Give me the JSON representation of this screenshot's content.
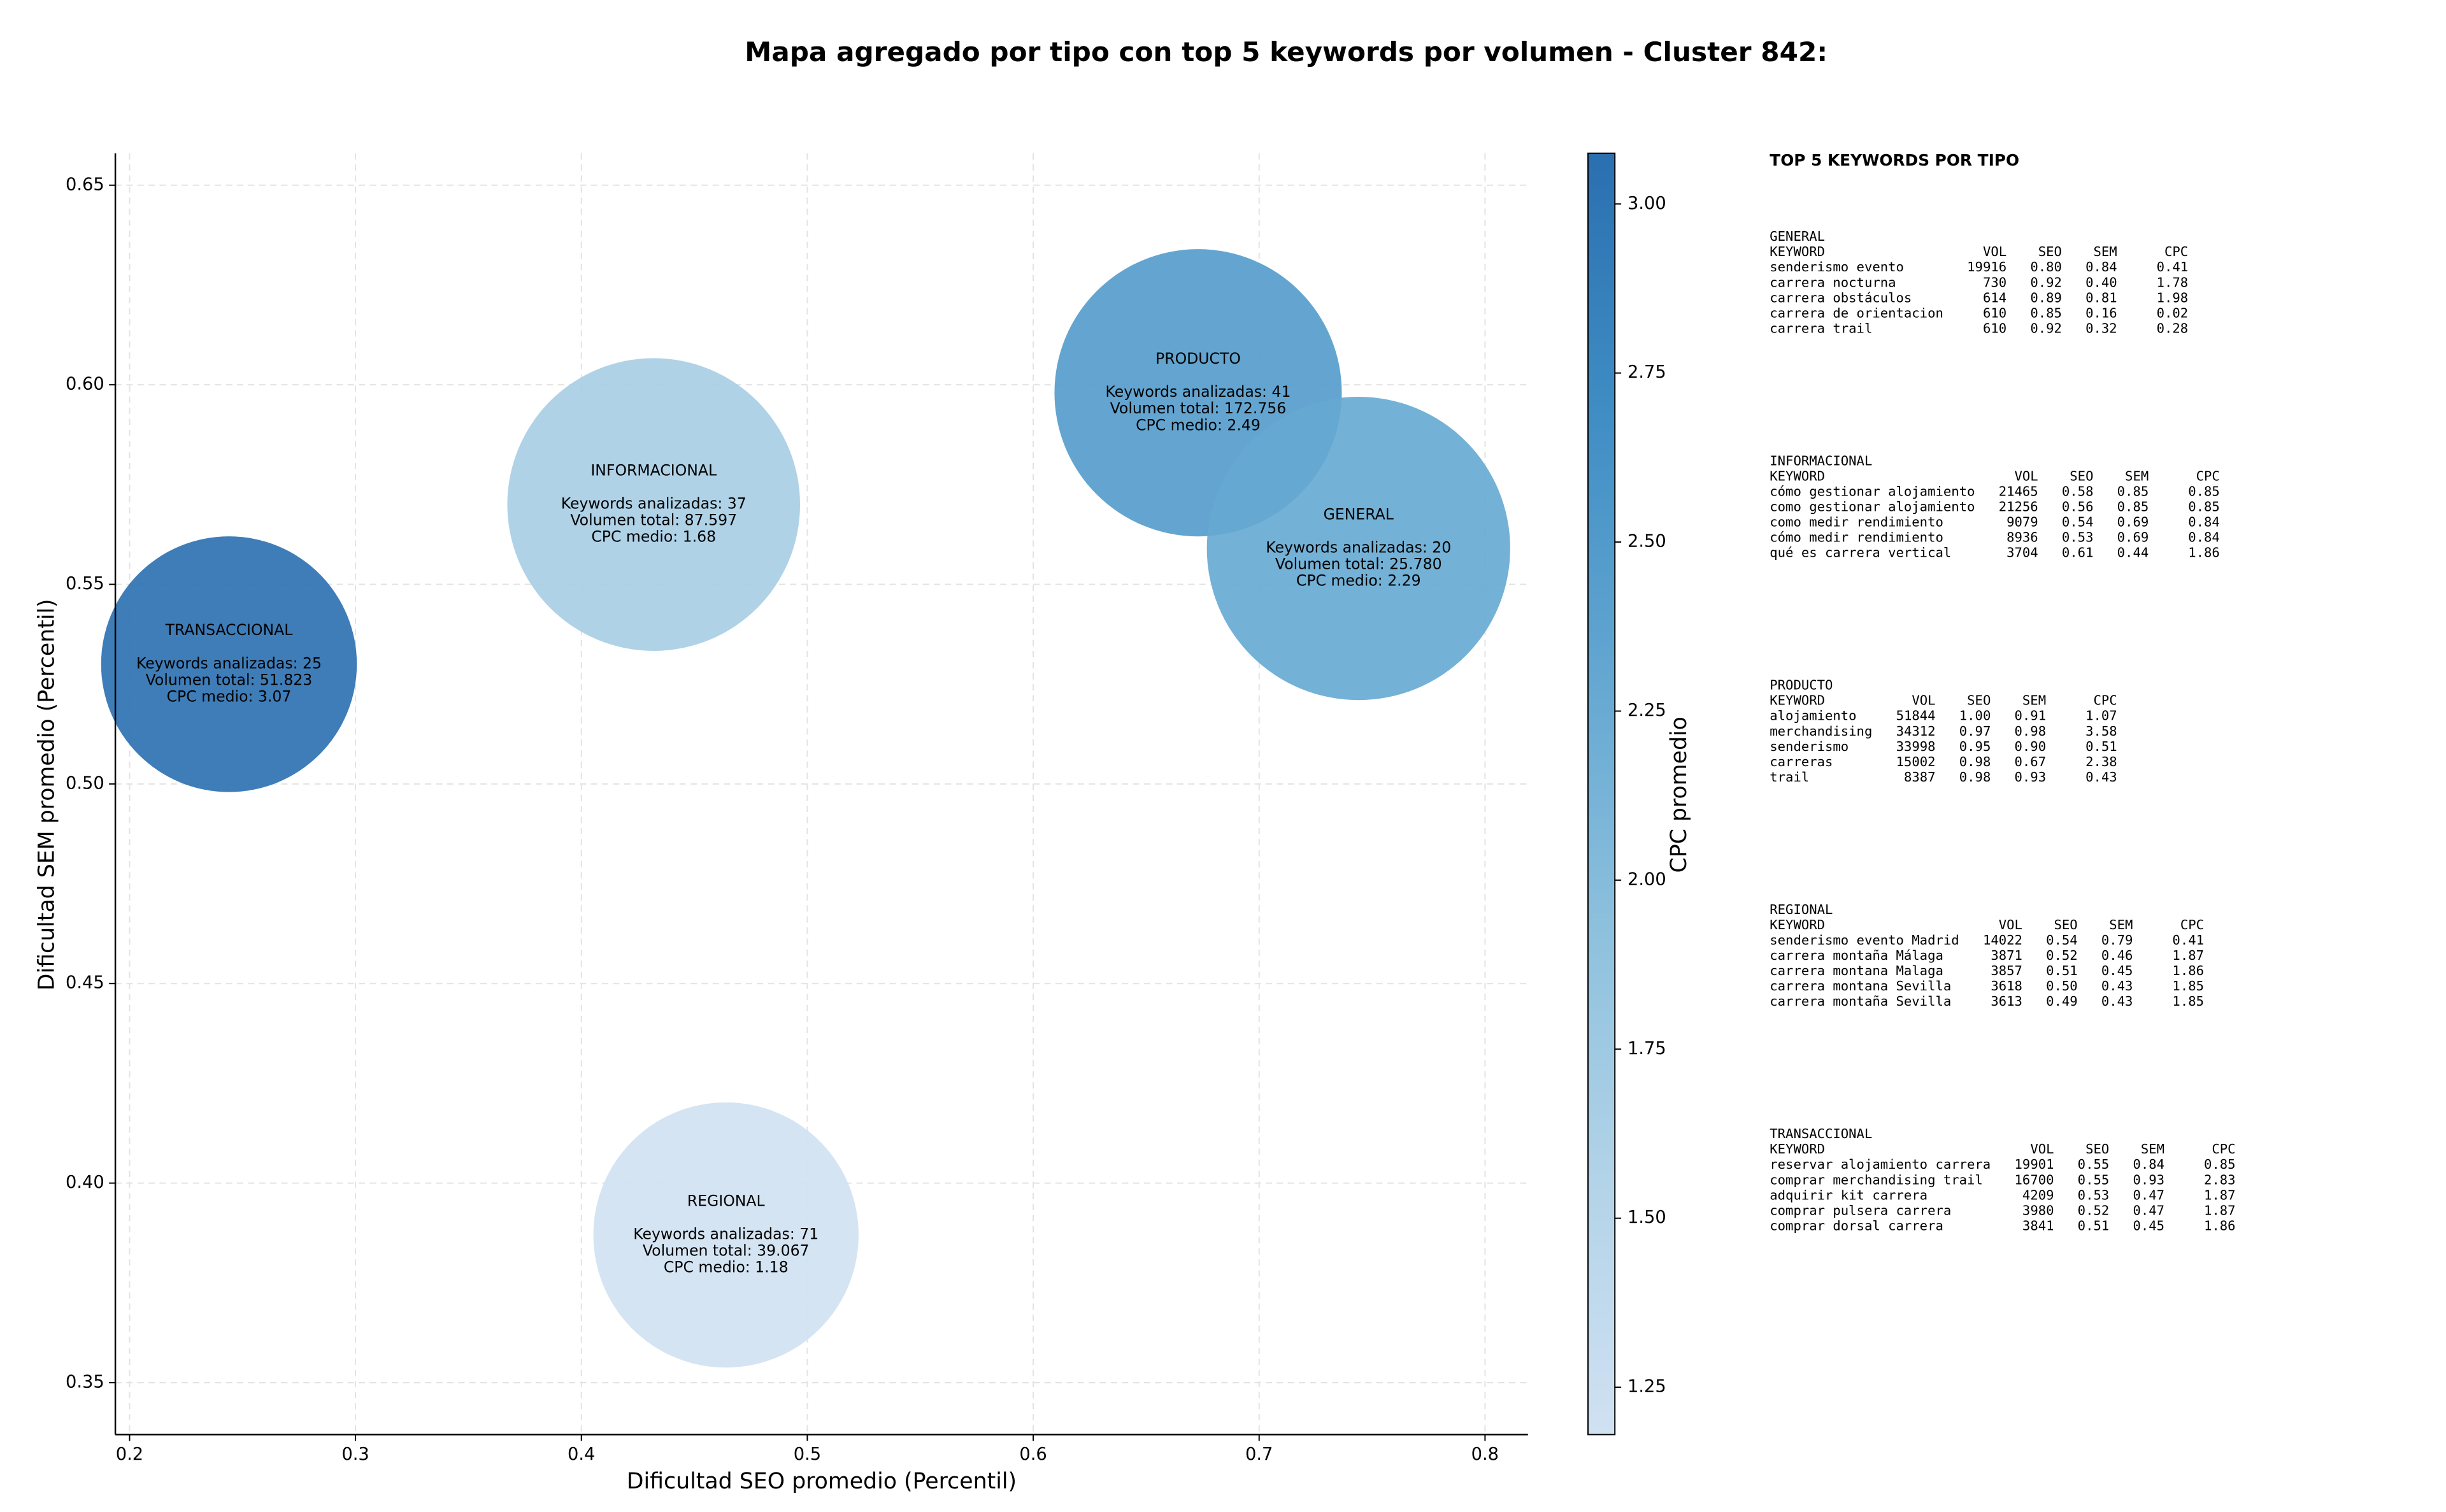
{
  "chart_data": {
    "type": "scatter",
    "title": "Mapa agregado por tipo con top 5 keywords por volumen - Cluster 842:",
    "xlabel": "Dificultad SEO promedio (Percentil)",
    "ylabel": "Dificultad SEM promedio (Percentil)",
    "labels": [
      "TRANSACCIONAL",
      "INFORMACIONAL",
      "PRODUCTO",
      "GENERAL",
      "REGIONAL"
    ],
    "x": [
      0.244,
      0.432,
      0.673,
      0.744,
      0.464
    ],
    "y": [
      0.53,
      0.57,
      0.598,
      0.559,
      0.387
    ],
    "sizes": [
      14500,
      19000,
      18300,
      20400,
      15600
    ],
    "color_values": [
      3.07,
      1.68,
      2.49,
      2.29,
      1.18
    ],
    "annotations": [
      [
        "Keywords analizadas: 25",
        "Volumen total: 51.823",
        "CPC medio: 3.07"
      ],
      [
        "Keywords analizadas: 37",
        "Volumen total: 87.597",
        "CPC medio: 1.68"
      ],
      [
        "Keywords analizadas: 41",
        "Volumen total: 172.756",
        "CPC medio: 2.49"
      ],
      [
        "Keywords analizadas: 20",
        "Volumen total: 25.780",
        "CPC medio: 2.29"
      ],
      [
        "Keywords analizadas: 71",
        "Volumen total: 39.067",
        "CPC medio: 1.18"
      ]
    ],
    "xlim": [
      0.1937,
      0.819
    ],
    "xticks": [
      0.2,
      0.3,
      0.4,
      0.5,
      0.6,
      0.7,
      0.8
    ],
    "ylim": [
      0.337,
      0.658
    ],
    "yticks": [
      0.35,
      {
        "value": 0.4,
        "label": "0.40"
      },
      0.45,
      {
        "value": 0.5,
        "label": "0.50"
      },
      0.55,
      {
        "value": 0.6,
        "label": "0.60"
      },
      0.65
    ],
    "grid": true,
    "colorbar": {
      "label": "CPC promedio",
      "lim": [
        1.18,
        3.075
      ],
      "ticks": [
        1.25,
        {
          "value": 1.5,
          "label": "1.50"
        },
        1.75,
        {
          "value": 2.0,
          "label": "2.00"
        },
        2.25,
        {
          "value": 2.5,
          "label": "2.50"
        },
        2.75,
        {
          "value": 3.0,
          "label": "3.00"
        }
      ],
      "colors": [
        "#d0e1f2",
        "#b2d3e8",
        "#8cc0dd",
        "#62a6d1",
        "#3f8dc4",
        "#2a6fb0"
      ]
    }
  },
  "keyword_table": {
    "title": "TOP 5 KEYWORDS POR TIPO",
    "header": [
      "KEYWORD",
      "VOL",
      "SEO",
      "SEM",
      "CPC"
    ],
    "groups": [
      {
        "name": "GENERAL",
        "rows": [
          [
            "senderismo evento",
            "19916",
            "0.80",
            "0.84",
            "0.41"
          ],
          [
            "carrera nocturna",
            "730",
            "0.92",
            "0.40",
            "1.78"
          ],
          [
            "carrera obstáculos",
            "614",
            "0.89",
            "0.81",
            "1.98"
          ],
          [
            "carrera de orientacion",
            "610",
            "0.85",
            "0.16",
            "0.02"
          ],
          [
            "carrera trail",
            "610",
            "0.92",
            "0.32",
            "0.28"
          ]
        ]
      },
      {
        "name": "INFORMACIONAL",
        "rows": [
          [
            "cómo gestionar alojamiento",
            "21465",
            "0.58",
            "0.85",
            "0.85"
          ],
          [
            "como gestionar alojamiento",
            "21256",
            "0.56",
            "0.85",
            "0.85"
          ],
          [
            "como medir rendimiento",
            "9079",
            "0.54",
            "0.69",
            "0.84"
          ],
          [
            "cómo medir rendimiento",
            "8936",
            "0.53",
            "0.69",
            "0.84"
          ],
          [
            "qué es carrera vertical",
            "3704",
            "0.61",
            "0.44",
            "1.86"
          ]
        ]
      },
      {
        "name": "PRODUCTO",
        "rows": [
          [
            "alojamiento",
            "51844",
            "1.00",
            "0.91",
            "1.07"
          ],
          [
            "merchandising",
            "34312",
            "0.97",
            "0.98",
            "3.58"
          ],
          [
            "senderismo",
            "33998",
            "0.95",
            "0.90",
            "0.51"
          ],
          [
            "carreras",
            "15002",
            "0.98",
            "0.67",
            "2.38"
          ],
          [
            "trail",
            "8387",
            "0.98",
            "0.93",
            "0.43"
          ]
        ]
      },
      {
        "name": "REGIONAL",
        "rows": [
          [
            "senderismo evento Madrid",
            "14022",
            "0.54",
            "0.79",
            "0.41"
          ],
          [
            "carrera montaña Málaga",
            "3871",
            "0.52",
            "0.46",
            "1.87"
          ],
          [
            "carrera montana Malaga",
            "3857",
            "0.51",
            "0.45",
            "1.86"
          ],
          [
            "carrera montana Sevilla",
            "3618",
            "0.50",
            "0.43",
            "1.85"
          ],
          [
            "carrera montaña Sevilla",
            "3613",
            "0.49",
            "0.43",
            "1.85"
          ]
        ]
      },
      {
        "name": "TRANSACCIONAL",
        "rows": [
          [
            "reservar alojamiento carrera",
            "19901",
            "0.55",
            "0.84",
            "0.85"
          ],
          [
            "comprar merchandising trail",
            "16700",
            "0.55",
            "0.93",
            "2.83"
          ],
          [
            "adquirir kit carrera",
            "4209",
            "0.53",
            "0.47",
            "1.87"
          ],
          [
            "comprar pulsera carrera",
            "3980",
            "0.52",
            "0.47",
            "1.87"
          ],
          [
            "comprar dorsal carrera",
            "3841",
            "0.51",
            "0.45",
            "1.86"
          ]
        ]
      }
    ]
  }
}
